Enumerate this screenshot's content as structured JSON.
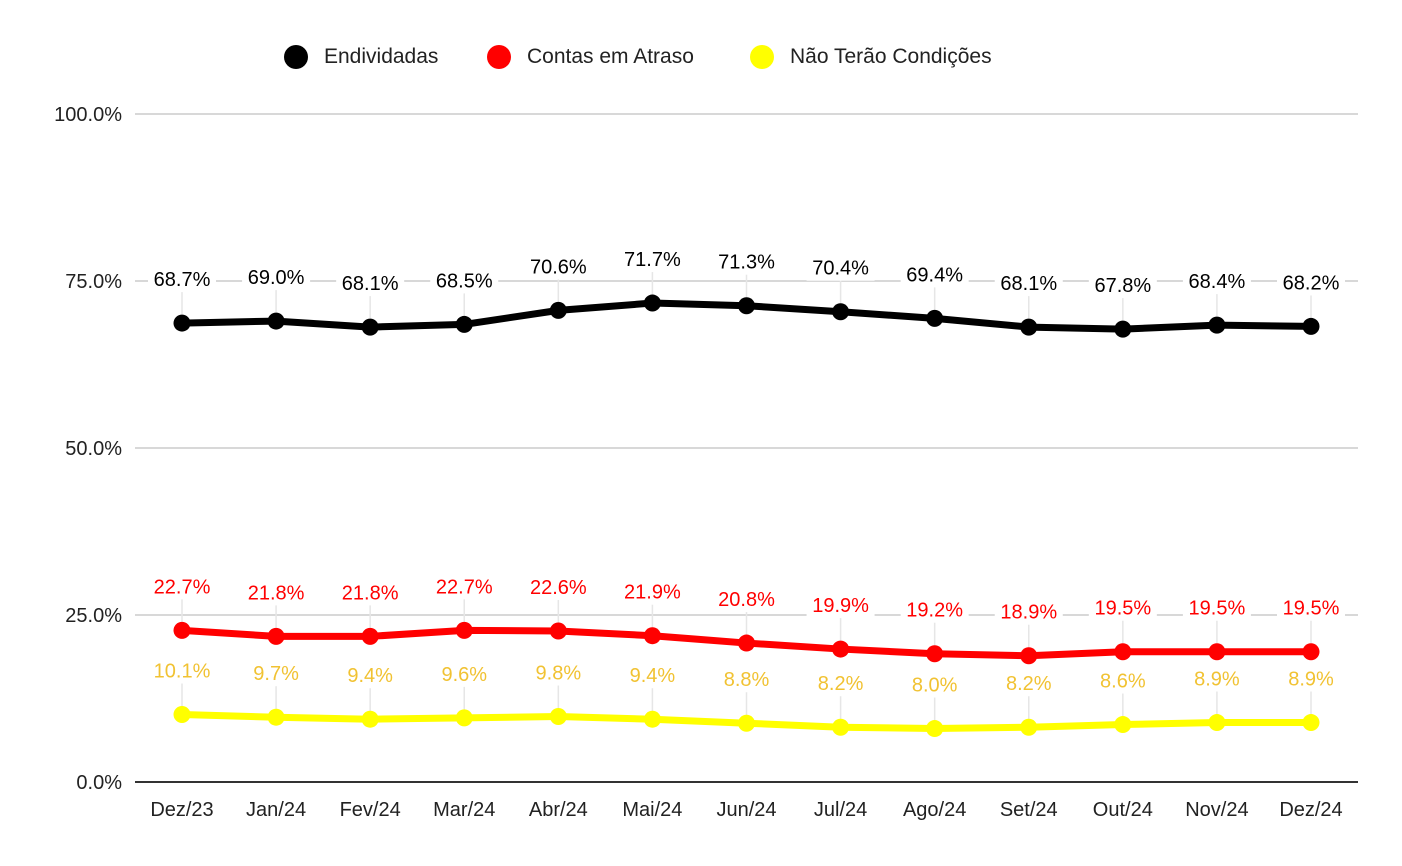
{
  "chart_data": {
    "type": "line",
    "title": "",
    "xlabel": "",
    "ylabel": "",
    "ylim": [
      0,
      100
    ],
    "yticks": [
      "0.0%",
      "25.0%",
      "50.0%",
      "75.0%",
      "100.0%"
    ],
    "ytick_values": [
      0,
      25,
      50,
      75,
      100
    ],
    "grid": true,
    "legend_position": "top-center",
    "categories": [
      "Dez/23",
      "Jan/24",
      "Fev/24",
      "Mar/24",
      "Abr/24",
      "Mai/24",
      "Jun/24",
      "Jul/24",
      "Ago/24",
      "Set/24",
      "Out/24",
      "Nov/24",
      "Dez/24"
    ],
    "series": [
      {
        "name": "Endividadas",
        "color": "#000000",
        "label_color": "#000000",
        "values": [
          68.7,
          69.0,
          68.1,
          68.5,
          70.6,
          71.7,
          71.3,
          70.4,
          69.4,
          68.1,
          67.8,
          68.4,
          68.2
        ],
        "labels": [
          "68.7%",
          "69.0%",
          "68.1%",
          "68.5%",
          "70.6%",
          "71.7%",
          "71.3%",
          "70.4%",
          "69.4%",
          "68.1%",
          "67.8%",
          "68.4%",
          "68.2%"
        ]
      },
      {
        "name": "Contas em Atraso",
        "color": "#ff0000",
        "label_color": "#ff0000",
        "values": [
          22.7,
          21.8,
          21.8,
          22.7,
          22.6,
          21.9,
          20.8,
          19.9,
          19.2,
          18.9,
          19.5,
          19.5,
          19.5
        ],
        "labels": [
          "22.7%",
          "21.8%",
          "21.8%",
          "22.7%",
          "22.6%",
          "21.9%",
          "20.8%",
          "19.9%",
          "19.2%",
          "18.9%",
          "19.5%",
          "19.5%",
          "19.5%"
        ]
      },
      {
        "name": "Não Terão Condições",
        "color": "#ffff00",
        "label_color": "#f1c232",
        "values": [
          10.1,
          9.7,
          9.4,
          9.6,
          9.8,
          9.4,
          8.8,
          8.2,
          8.0,
          8.2,
          8.6,
          8.9,
          8.9
        ],
        "labels": [
          "10.1%",
          "9.7%",
          "9.4%",
          "9.6%",
          "9.8%",
          "9.4%",
          "8.8%",
          "8.2%",
          "8.0%",
          "8.2%",
          "8.6%",
          "8.9%",
          "8.9%"
        ]
      }
    ]
  }
}
